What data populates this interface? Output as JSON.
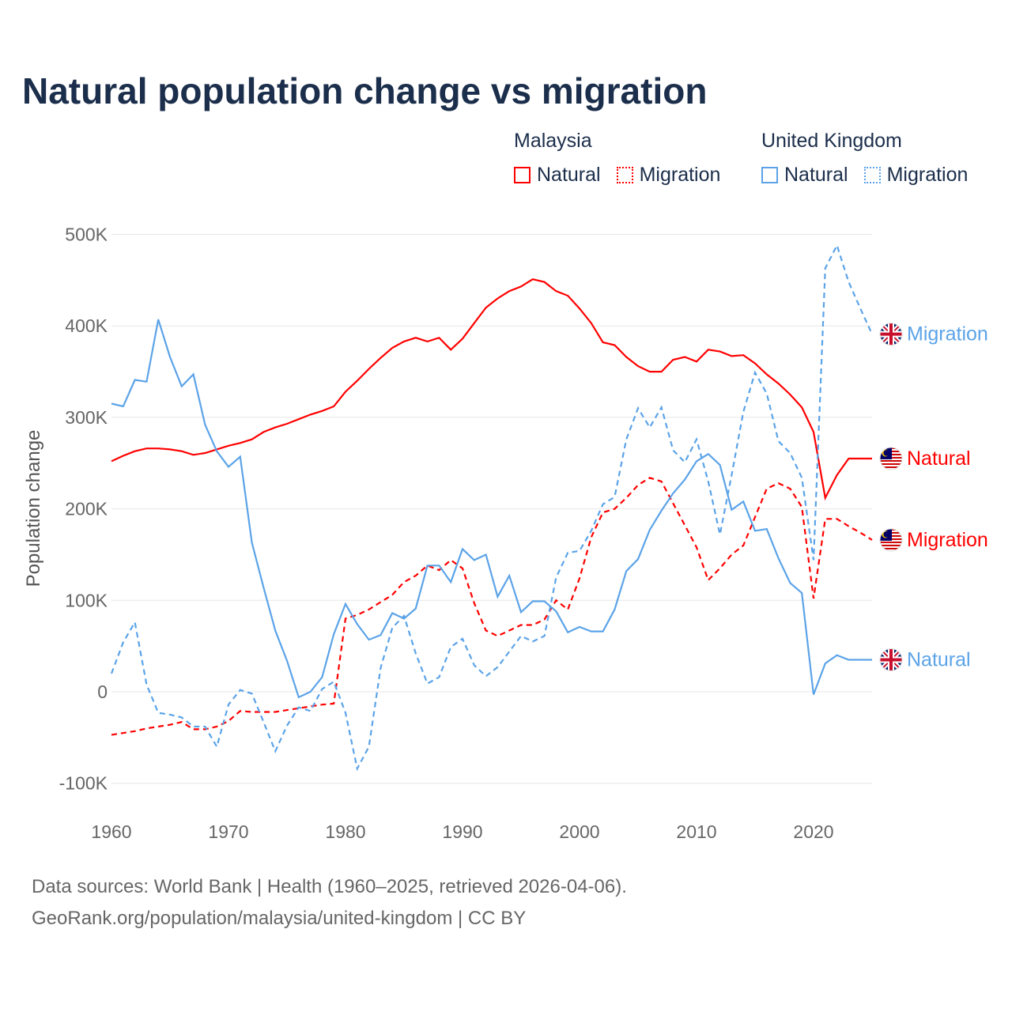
{
  "chart_data": {
    "type": "line",
    "title": "Natural population change vs migration",
    "xlabel": "",
    "ylabel": "Population change",
    "xlim": [
      1960,
      2025
    ],
    "ylim": [
      -100000,
      500000
    ],
    "x_ticks": [
      "1960",
      "1970",
      "1980",
      "1990",
      "2000",
      "2010",
      "2020"
    ],
    "y_ticks": [
      {
        "v": 500000,
        "label": "500K"
      },
      {
        "v": 400000,
        "label": "400K"
      },
      {
        "v": 300000,
        "label": "300K"
      },
      {
        "v": 200000,
        "label": "200K"
      },
      {
        "v": 100000,
        "label": "100K"
      },
      {
        "v": 0,
        "label": "0"
      },
      {
        "v": -100000,
        "label": "-100K"
      }
    ],
    "grid": true,
    "legend": {
      "placement": "top-right",
      "groups": [
        {
          "country": "Malaysia",
          "items": [
            "Natural",
            "Migration"
          ]
        },
        {
          "country": "United Kingdom",
          "items": [
            "Natural",
            "Migration"
          ]
        }
      ]
    },
    "x_start": 1960,
    "series": [
      {
        "name": "Malaysia Natural",
        "country": "Malaysia",
        "kind": "Natural",
        "color": "#ff0000",
        "dashed": false,
        "flag": "malaysia-flag",
        "values_k": [
          252,
          258,
          263,
          266,
          266,
          265,
          263,
          259,
          261,
          265,
          269,
          272,
          276,
          284,
          289,
          293,
          298,
          303,
          307,
          312,
          328,
          340,
          353,
          365,
          376,
          383,
          387,
          383,
          387,
          374,
          386,
          403,
          420,
          430,
          438,
          443,
          451,
          448,
          438,
          433,
          419,
          403,
          382,
          379,
          366,
          356,
          350,
          350,
          363,
          366,
          361,
          374,
          372,
          367,
          368,
          359,
          347,
          337,
          325,
          311,
          284,
          212,
          237,
          255,
          255,
          255
        ]
      },
      {
        "name": "Malaysia Migration",
        "country": "Malaysia",
        "kind": "Migration",
        "color": "#ff0000",
        "dashed": true,
        "flag": "malaysia-flag",
        "values_k": [
          -47,
          -45,
          -43,
          -40,
          -38,
          -36,
          -33,
          -41,
          -41,
          -38,
          -32,
          -21,
          -22,
          -22,
          -22,
          -20,
          -18,
          -16,
          -14,
          -13,
          80,
          84,
          90,
          98,
          106,
          120,
          127,
          138,
          133,
          144,
          135,
          97,
          67,
          61,
          67,
          73,
          73,
          79,
          100,
          90,
          124,
          169,
          196,
          200,
          212,
          226,
          234,
          230,
          206,
          182,
          158,
          122,
          135,
          150,
          160,
          191,
          222,
          228,
          222,
          202,
          102,
          189,
          189,
          181,
          174,
          166
        ]
      },
      {
        "name": "United Kingdom Natural",
        "country": "United Kingdom",
        "kind": "Natural",
        "color": "#5ba3e8",
        "dashed": false,
        "flag": "uk-flag",
        "values_k": [
          315,
          312,
          341,
          339,
          407,
          366,
          334,
          347,
          292,
          263,
          246,
          257,
          163,
          114,
          67,
          34,
          -6,
          0,
          16,
          63,
          96,
          74,
          57,
          62,
          86,
          80,
          91,
          138,
          138,
          120,
          156,
          144,
          150,
          104,
          127,
          87,
          99,
          99,
          88,
          65,
          71,
          66,
          66,
          90,
          132,
          145,
          177,
          198,
          217,
          232,
          252,
          260,
          248,
          199,
          208,
          176,
          178,
          146,
          119,
          108,
          -3,
          31,
          40,
          35,
          35,
          35
        ]
      },
      {
        "name": "United Kingdom Migration",
        "country": "United Kingdom",
        "kind": "Migration",
        "color": "#5ba3e8",
        "dashed": true,
        "flag": "uk-flag",
        "values_k": [
          20,
          54,
          76,
          8,
          -23,
          -25,
          -28,
          -38,
          -38,
          -60,
          -14,
          2,
          -2,
          -33,
          -65,
          -37,
          -17,
          -21,
          3,
          11,
          -23,
          -84,
          -60,
          26,
          70,
          83,
          42,
          9,
          16,
          49,
          58,
          29,
          17,
          27,
          44,
          61,
          55,
          61,
          125,
          152,
          154,
          176,
          205,
          213,
          276,
          310,
          289,
          311,
          264,
          251,
          276,
          230,
          172,
          237,
          306,
          349,
          326,
          274,
          261,
          234,
          144,
          463,
          488,
          448,
          419,
          391
        ]
      }
    ]
  },
  "footer": {
    "line1": "Data sources: World Bank | Health (1960–2025, retrieved 2026-04-06).",
    "line2": "GeoRank.org/population/malaysia/united-kingdom | CC BY"
  }
}
